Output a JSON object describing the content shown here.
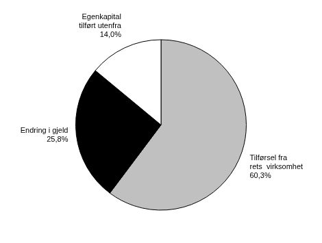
{
  "chart_data": {
    "type": "pie",
    "categories": [
      "Tilførsel fra\nrets  virksomhet",
      "Endring i gjeld",
      "Egenkapital\ntilført utenfra"
    ],
    "values": [
      60.3,
      25.8,
      14.0
    ],
    "value_labels": [
      "60,3%",
      "25,8%",
      "14,0%"
    ],
    "colors": [
      "#c0c0c0",
      "#000000",
      "#ffffff"
    ],
    "data_labels": true
  }
}
